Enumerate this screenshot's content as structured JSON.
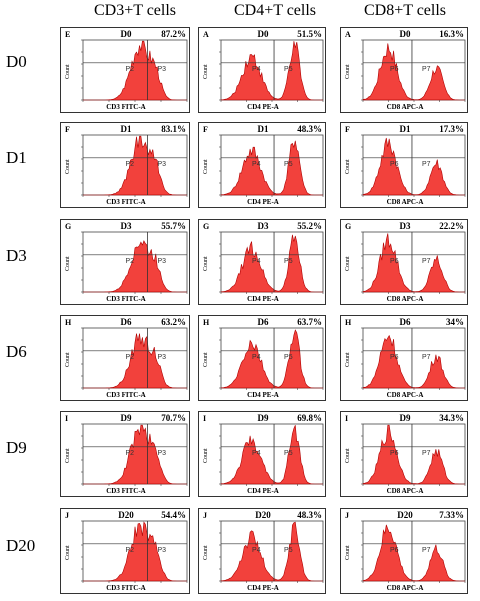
{
  "columns": [
    {
      "label": "CD3+T cells",
      "xlabel": "CD3 FITC-A",
      "gate_left": "P2",
      "gate_right": "P3"
    },
    {
      "label": "CD4+T cells",
      "xlabel": "CD4 PE-A",
      "gate_left": "P4",
      "gate_right": "P5"
    },
    {
      "label": "CD8+T cells",
      "xlabel": "CD8 APC-A",
      "gate_left": "P6",
      "gate_right": "P7"
    }
  ],
  "ylabel": "Count",
  "rows": [
    {
      "day": "D0",
      "panels": [
        {
          "letter": "E",
          "day": "D0",
          "pct": "87.2%"
        },
        {
          "letter": "A",
          "day": "D0",
          "pct": "51.5%"
        },
        {
          "letter": "A",
          "day": "D0",
          "pct": "16.3%"
        }
      ]
    },
    {
      "day": "D1",
      "panels": [
        {
          "letter": "F",
          "day": "D1",
          "pct": "83.1%"
        },
        {
          "letter": "F",
          "day": "D1",
          "pct": "48.3%"
        },
        {
          "letter": "F",
          "day": "D1",
          "pct": "17.3%"
        }
      ]
    },
    {
      "day": "D3",
      "panels": [
        {
          "letter": "G",
          "day": "D3",
          "pct": "55.7%"
        },
        {
          "letter": "G",
          "day": "D3",
          "pct": "55.2%"
        },
        {
          "letter": "G",
          "day": "D3",
          "pct": "22.2%"
        }
      ]
    },
    {
      "day": "D6",
      "panels": [
        {
          "letter": "H",
          "day": "D6",
          "pct": "63.2%"
        },
        {
          "letter": "H",
          "day": "D6",
          "pct": "63.7%"
        },
        {
          "letter": "H",
          "day": "D6",
          "pct": "34%"
        }
      ]
    },
    {
      "day": "D9",
      "panels": [
        {
          "letter": "I",
          "day": "D9",
          "pct": "70.7%"
        },
        {
          "letter": "I",
          "day": "D9",
          "pct": "69.8%"
        },
        {
          "letter": "I",
          "day": "D9",
          "pct": "34.3%"
        }
      ]
    },
    {
      "day": "D20",
      "panels": [
        {
          "letter": "J",
          "day": "D20",
          "pct": "54.4%"
        },
        {
          "letter": "J",
          "day": "D20",
          "pct": "48.3%"
        },
        {
          "letter": "J",
          "day": "D20",
          "pct": "7.33%"
        }
      ]
    }
  ],
  "colors": {
    "histogram_fill": "#f0201a",
    "histogram_stroke": "#b00000",
    "gate_line": "#333333"
  }
}
